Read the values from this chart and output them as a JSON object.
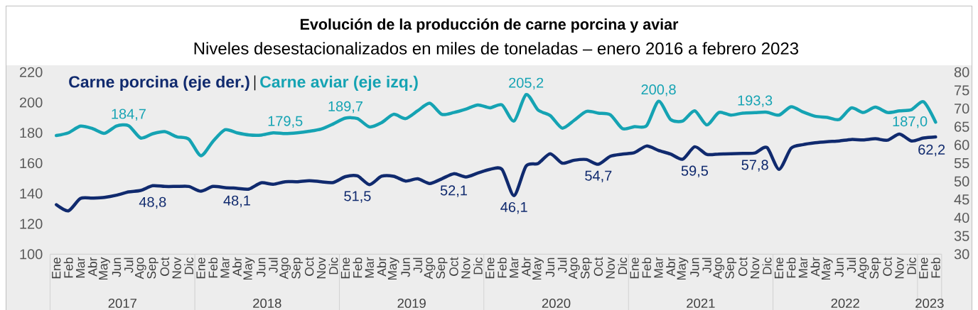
{
  "chart_data": {
    "type": "line",
    "title": "Evolución de la producción de carne porcina y aviar",
    "subtitle": "Niveles desestacionalizados en miles de toneladas – enero 2016 a febrero 2023",
    "x": [
      "2017-01",
      "2017-02",
      "2017-03",
      "2017-04",
      "2017-05",
      "2017-06",
      "2017-07",
      "2017-08",
      "2017-09",
      "2017-10",
      "2017-11",
      "2017-12",
      "2018-01",
      "2018-02",
      "2018-03",
      "2018-04",
      "2018-05",
      "2018-06",
      "2018-07",
      "2018-08",
      "2018-09",
      "2018-10",
      "2018-11",
      "2018-12",
      "2019-01",
      "2019-02",
      "2019-03",
      "2019-04",
      "2019-05",
      "2019-06",
      "2019-07",
      "2019-08",
      "2019-09",
      "2019-10",
      "2019-11",
      "2019-12",
      "2020-01",
      "2020-02",
      "2020-03",
      "2020-04",
      "2020-05",
      "2020-06",
      "2020-07",
      "2020-08",
      "2020-09",
      "2020-10",
      "2020-11",
      "2020-12",
      "2021-01",
      "2021-02",
      "2021-03",
      "2021-04",
      "2021-05",
      "2021-06",
      "2021-07",
      "2021-08",
      "2021-09",
      "2021-10",
      "2021-11",
      "2021-12",
      "2022-01",
      "2022-02",
      "2022-03",
      "2022-04",
      "2022-05",
      "2022-06",
      "2022-07",
      "2022-08",
      "2022-09",
      "2022-10",
      "2022-11",
      "2022-12",
      "2023-01",
      "2023-02"
    ],
    "xlim": [
      "2016-12-16",
      "2023-02-15"
    ],
    "xticks": [
      {
        "value": "2017-01",
        "label": "Ene"
      },
      {
        "value": "2017-02",
        "label": "Feb"
      },
      {
        "value": "2017-03",
        "label": "Mar"
      },
      {
        "value": "2017-04",
        "label": "Abr"
      },
      {
        "value": "2017-05",
        "label": "May"
      },
      {
        "value": "2017-06",
        "label": "Jun"
      },
      {
        "value": "2017-07",
        "label": "Jul"
      },
      {
        "value": "2017-08",
        "label": "Ago"
      },
      {
        "value": "2017-09",
        "label": "Sep"
      },
      {
        "value": "2017-10",
        "label": "Oct"
      },
      {
        "value": "2017-11",
        "label": "Nov"
      },
      {
        "value": "2017-12",
        "label": "Dic"
      },
      {
        "value": "2018-01",
        "label": "Ene"
      },
      {
        "value": "2018-02",
        "label": "Feb"
      },
      {
        "value": "2018-03",
        "label": "Mar"
      },
      {
        "value": "2018-04",
        "label": "Abr"
      },
      {
        "value": "2018-05",
        "label": "May"
      },
      {
        "value": "2018-06",
        "label": "Jun"
      },
      {
        "value": "2018-07",
        "label": "Jul"
      },
      {
        "value": "2018-08",
        "label": "Ago"
      },
      {
        "value": "2018-09",
        "label": "Sep"
      },
      {
        "value": "2018-10",
        "label": "Oct"
      },
      {
        "value": "2018-11",
        "label": "Nov"
      },
      {
        "value": "2018-12",
        "label": "Dic"
      },
      {
        "value": "2019-01",
        "label": "Ene"
      },
      {
        "value": "2019-02",
        "label": "Feb"
      },
      {
        "value": "2019-03",
        "label": "Mar"
      },
      {
        "value": "2019-04",
        "label": "Abr"
      },
      {
        "value": "2019-05",
        "label": "May"
      },
      {
        "value": "2019-06",
        "label": "Jun"
      },
      {
        "value": "2019-07",
        "label": "Jul"
      },
      {
        "value": "2019-08",
        "label": "Ago"
      },
      {
        "value": "2019-09",
        "label": "Sep"
      },
      {
        "value": "2019-10",
        "label": "Oct"
      },
      {
        "value": "2019-11",
        "label": "Nov"
      },
      {
        "value": "2019-12",
        "label": "Dic"
      },
      {
        "value": "2020-01",
        "label": "Ene"
      },
      {
        "value": "2020-02",
        "label": "Feb"
      },
      {
        "value": "2020-03",
        "label": "Mar"
      },
      {
        "value": "2020-04",
        "label": "Abr"
      },
      {
        "value": "2020-05",
        "label": "May"
      },
      {
        "value": "2020-06",
        "label": "Jun"
      },
      {
        "value": "2020-07",
        "label": "Jul"
      },
      {
        "value": "2020-08",
        "label": "Ago"
      },
      {
        "value": "2020-09",
        "label": "Sep"
      },
      {
        "value": "2020-10",
        "label": "Oct"
      },
      {
        "value": "2020-11",
        "label": "Nov"
      },
      {
        "value": "2020-12",
        "label": "Dic"
      },
      {
        "value": "2021-01",
        "label": "Ene"
      },
      {
        "value": "2021-02",
        "label": "Feb"
      },
      {
        "value": "2021-03",
        "label": "Mar"
      },
      {
        "value": "2021-04",
        "label": "Abr"
      },
      {
        "value": "2021-05",
        "label": "May"
      },
      {
        "value": "2021-06",
        "label": "Jun"
      },
      {
        "value": "2021-07",
        "label": "Jul"
      },
      {
        "value": "2021-08",
        "label": "Ago"
      },
      {
        "value": "2021-09",
        "label": "Sep"
      },
      {
        "value": "2021-10",
        "label": "Oct"
      },
      {
        "value": "2021-11",
        "label": "Nov"
      },
      {
        "value": "2021-12",
        "label": "Dic"
      },
      {
        "value": "2022-01",
        "label": "Ene"
      },
      {
        "value": "2022-02",
        "label": "Feb"
      },
      {
        "value": "2022-03",
        "label": "Mar"
      },
      {
        "value": "2022-04",
        "label": "Abr"
      },
      {
        "value": "2022-05",
        "label": "May"
      },
      {
        "value": "2022-06",
        "label": "Jun"
      },
      {
        "value": "2022-07",
        "label": "Jul"
      },
      {
        "value": "2022-08",
        "label": "Ago"
      },
      {
        "value": "2022-09",
        "label": "Sep"
      },
      {
        "value": "2022-10",
        "label": "Oct"
      },
      {
        "value": "2022-11",
        "label": "Nov"
      },
      {
        "value": "2022-12",
        "label": "Dic"
      },
      {
        "value": "2023-01",
        "label": "Ene"
      },
      {
        "value": "2023-02",
        "label": "Feb"
      }
    ],
    "ylim": [
      100,
      220
    ],
    "yticks": [
      100,
      120,
      140,
      160,
      180,
      200,
      220
    ],
    "y2lim": [
      30,
      80
    ],
    "y2ticks": [
      30,
      35,
      40,
      45,
      50,
      55,
      60,
      65,
      70,
      75,
      80
    ],
    "series": [
      {
        "name": "Carne porcina (eje der.)",
        "color": "#102a6e",
        "axis": "y2",
        "values": [
          43.6,
          41.9,
          45.3,
          45.4,
          45.6,
          46.2,
          47.1,
          47.5,
          48.8,
          48.6,
          48.6,
          48.6,
          47.3,
          48.6,
          48.3,
          48.1,
          47.9,
          49.6,
          49.2,
          49.9,
          49.9,
          50.2,
          49.9,
          49.7,
          51.3,
          51.5,
          49.1,
          51.4,
          51.4,
          50.1,
          50.7,
          49.4,
          50.7,
          52.1,
          51.2,
          52.3,
          53.3,
          53.3,
          46.1,
          54.2,
          54.9,
          57.6,
          55.0,
          55.8,
          56.0,
          54.7,
          56.9,
          57.5,
          57.9,
          59.7,
          58.5,
          57.5,
          56.1,
          59.5,
          57.4,
          57.5,
          57.6,
          57.7,
          57.8,
          59.3,
          53.3,
          59.1,
          60.1,
          60.6,
          60.9,
          61.1,
          61.5,
          61.4,
          61.7,
          61.3,
          63.0,
          61.1,
          61.9,
          62.2
        ],
        "value_labels": [
          null,
          null,
          null,
          null,
          null,
          null,
          null,
          null,
          "48,8",
          null,
          null,
          null,
          null,
          null,
          null,
          "48,1",
          null,
          null,
          null,
          null,
          null,
          null,
          null,
          null,
          null,
          "51,5",
          null,
          null,
          null,
          null,
          null,
          null,
          null,
          "52,1",
          null,
          null,
          null,
          null,
          "46,1",
          null,
          null,
          null,
          null,
          null,
          null,
          "54,7",
          null,
          null,
          null,
          null,
          null,
          null,
          null,
          "59,5",
          null,
          null,
          null,
          null,
          "57,8",
          null,
          null,
          null,
          null,
          null,
          null,
          null,
          null,
          null,
          null,
          null,
          null,
          null,
          null,
          "62,2"
        ]
      },
      {
        "name": "Carne aviar (eje izq.)",
        "color": "#15a3b3",
        "values": [
          178.2,
          180.0,
          184.4,
          182.8,
          179.7,
          184.5,
          184.7,
          176.6,
          179.4,
          180.8,
          177.4,
          175.8,
          164.9,
          174.3,
          182.0,
          180.0,
          178.6,
          178.5,
          180.0,
          179.5,
          180.0,
          181.0,
          182.5,
          185.9,
          189.7,
          189.4,
          183.9,
          186.7,
          192.2,
          189.4,
          194.5,
          199.5,
          192.2,
          193.4,
          195.6,
          198.4,
          196.5,
          198.4,
          187.8,
          205.2,
          195.0,
          191.4,
          183.1,
          188.3,
          194.1,
          193.0,
          191.9,
          182.8,
          184.1,
          184.7,
          200.8,
          188.8,
          187.8,
          194.5,
          185.2,
          193.4,
          191.7,
          193.0,
          193.3,
          193.6,
          191.7,
          197.2,
          193.7,
          190.9,
          190.2,
          188.8,
          196.4,
          193.4,
          196.9,
          193.4,
          194.5,
          195.3,
          200.4,
          187.0
        ],
        "value_labels": [
          null,
          null,
          null,
          null,
          null,
          null,
          "184,7",
          null,
          null,
          null,
          null,
          null,
          null,
          null,
          null,
          null,
          null,
          null,
          null,
          "179,5",
          null,
          null,
          null,
          null,
          "189,7",
          null,
          null,
          null,
          null,
          null,
          null,
          null,
          null,
          null,
          null,
          null,
          null,
          null,
          null,
          "205,2",
          null,
          null,
          null,
          null,
          null,
          null,
          null,
          null,
          null,
          null,
          "200,8",
          null,
          null,
          null,
          null,
          null,
          null,
          null,
          "193,3",
          null,
          null,
          null,
          null,
          null,
          null,
          null,
          null,
          null,
          null,
          null,
          null,
          null,
          null,
          "187,0"
        ]
      }
    ],
    "annotations": [
      "2017",
      "2018",
      "2019",
      "2020",
      "2021",
      "2022",
      "2023"
    ],
    "legend": "top left",
    "grid": false,
    "marker": "none",
    "line_style": "solid"
  }
}
